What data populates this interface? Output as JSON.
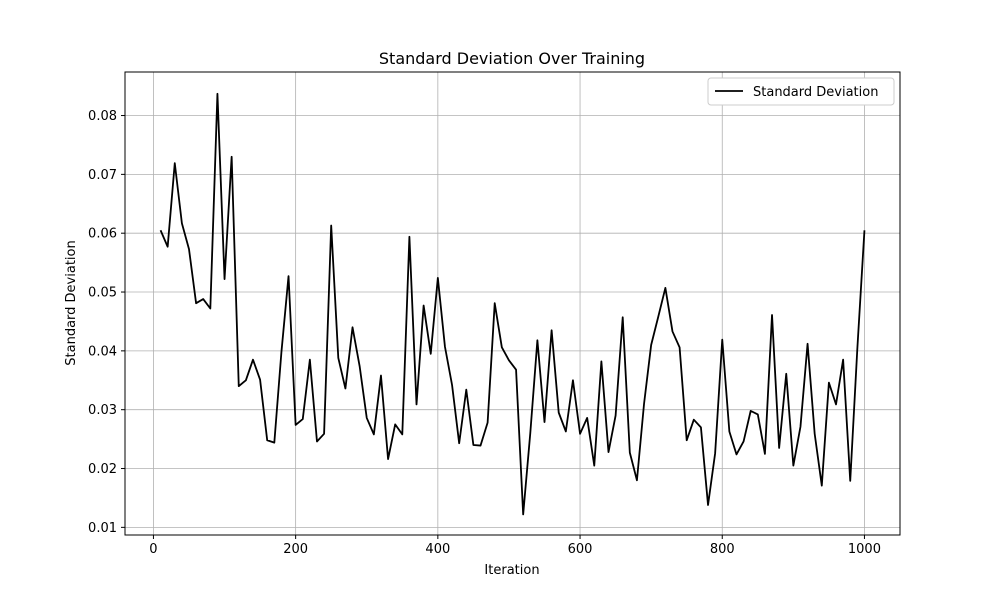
{
  "chart_data": {
    "type": "line",
    "title": "Standard Deviation Over Training",
    "xlabel": "Iteration",
    "ylabel": "Standard Deviation",
    "xlim": [
      -40,
      1050
    ],
    "ylim": [
      0.0087,
      0.0874
    ],
    "xticks": [
      0,
      200,
      400,
      600,
      800,
      1000
    ],
    "yticks": [
      0.01,
      0.02,
      0.03,
      0.04,
      0.05,
      0.06,
      0.07,
      0.08
    ],
    "xtick_labels": [
      "0",
      "200",
      "400",
      "600",
      "800",
      "1000"
    ],
    "ytick_labels": [
      "0.01",
      "0.02",
      "0.03",
      "0.04",
      "0.05",
      "0.06",
      "0.07",
      "0.08"
    ],
    "grid": true,
    "legend_position": "top-right",
    "series": [
      {
        "name": "Standard Deviation",
        "color": "#000000",
        "x": [
          10,
          20,
          30,
          40,
          50,
          60,
          70,
          80,
          90,
          100,
          110,
          120,
          130,
          140,
          150,
          160,
          170,
          180,
          190,
          200,
          210,
          220,
          230,
          240,
          250,
          260,
          270,
          280,
          290,
          300,
          310,
          320,
          330,
          340,
          350,
          360,
          370,
          380,
          390,
          400,
          410,
          420,
          430,
          440,
          450,
          460,
          470,
          480,
          490,
          500,
          510,
          520,
          530,
          540,
          550,
          560,
          570,
          580,
          590,
          600,
          610,
          620,
          630,
          640,
          650,
          660,
          670,
          680,
          690,
          700,
          710,
          720,
          730,
          740,
          750,
          760,
          770,
          780,
          790,
          800,
          810,
          820,
          830,
          840,
          850,
          860,
          870,
          880,
          890,
          900,
          910,
          920,
          930,
          940,
          950,
          960,
          970,
          980,
          990,
          1000
        ],
        "y": [
          0.0605,
          0.0577,
          0.0719,
          0.0617,
          0.0573,
          0.0481,
          0.0488,
          0.0472,
          0.0837,
          0.0522,
          0.073,
          0.034,
          0.035,
          0.0385,
          0.0351,
          0.0248,
          0.0244,
          0.0398,
          0.0527,
          0.0274,
          0.0284,
          0.0385,
          0.0246,
          0.0259,
          0.0613,
          0.0388,
          0.0336,
          0.044,
          0.0374,
          0.0286,
          0.0258,
          0.0358,
          0.0216,
          0.0275,
          0.0258,
          0.0594,
          0.0309,
          0.0477,
          0.0395,
          0.0524,
          0.0407,
          0.0342,
          0.0243,
          0.0334,
          0.024,
          0.0239,
          0.0278,
          0.0481,
          0.0406,
          0.0384,
          0.0368,
          0.0122,
          0.026,
          0.0418,
          0.0279,
          0.0435,
          0.0295,
          0.0263,
          0.035,
          0.0259,
          0.0286,
          0.0205,
          0.0382,
          0.0228,
          0.029,
          0.0457,
          0.0227,
          0.018,
          0.031,
          0.041,
          0.0458,
          0.0507,
          0.0433,
          0.0406,
          0.0248,
          0.0283,
          0.027,
          0.0138,
          0.0226,
          0.0419,
          0.0263,
          0.0224,
          0.0246,
          0.0298,
          0.0292,
          0.0225,
          0.0461,
          0.0235,
          0.0361,
          0.0205,
          0.0271,
          0.0412,
          0.0259,
          0.0171,
          0.0346,
          0.0309,
          0.0385,
          0.0179,
          0.0404,
          0.0605
        ]
      }
    ]
  }
}
